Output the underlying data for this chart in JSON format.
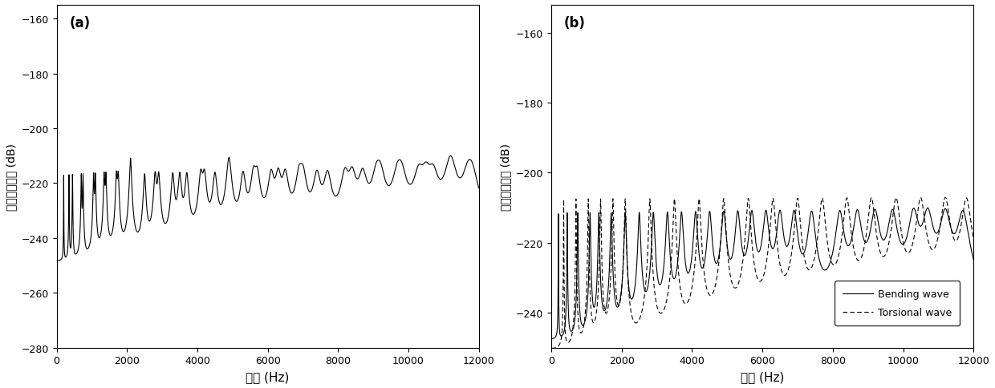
{
  "freq_min": 0,
  "freq_max": 12000,
  "plot_a_ylim": [
    -280,
    -155
  ],
  "plot_b_ylim": [
    -250,
    -152
  ],
  "plot_a_yticks": [
    -280,
    -260,
    -240,
    -220,
    -200,
    -180,
    -160
  ],
  "plot_b_yticks": [
    -240,
    -220,
    -200,
    -180,
    -160
  ],
  "xticks": [
    0,
    2000,
    4000,
    6000,
    8000,
    10000,
    12000
  ],
  "xlabel": "频率 (Hz)",
  "ylabel": "频率响应函数 (dB)",
  "label_a": "(a)",
  "label_b": "(b)",
  "legend_bending": "Bending wave",
  "legend_torsional": "Torsional wave",
  "bending_color": "#000000",
  "torsional_color": "#000000",
  "background_color": "#ffffff",
  "bending_freqs": [
    200,
    450,
    750,
    1100,
    1350,
    1700,
    2100,
    2500,
    2900,
    3300,
    3700,
    4100,
    4500,
    4900,
    5300,
    5700,
    6100,
    6500,
    6900,
    7400,
    8200,
    8700,
    9200,
    9700,
    10300,
    10700,
    11200,
    11700
  ],
  "torsional_freqs": [
    350,
    700,
    1050,
    1400,
    1750,
    2100,
    2800,
    3500,
    4200,
    4900,
    5600,
    6300,
    7000,
    7700,
    8400,
    9100,
    9800,
    10500,
    11200,
    11800
  ],
  "base_level_a": -210,
  "base_level_b_bending": -210,
  "base_level_b_torsional": -207,
  "damping": 0.012
}
